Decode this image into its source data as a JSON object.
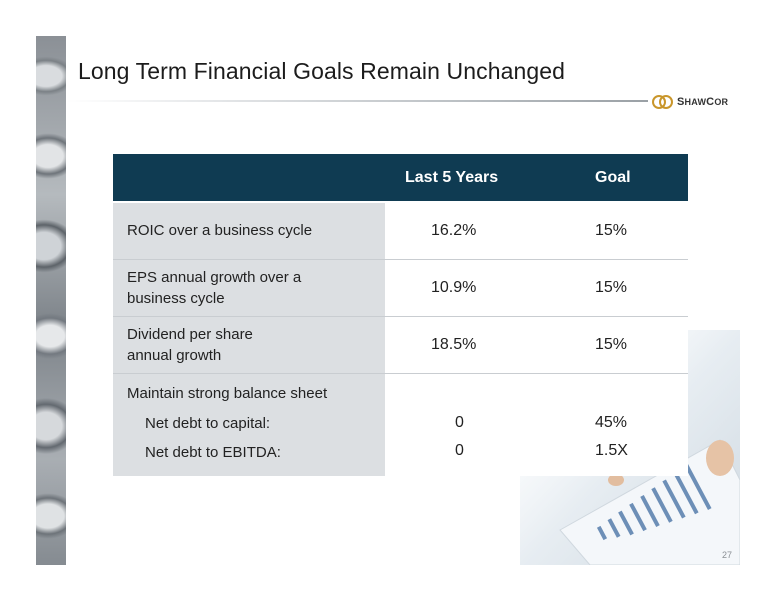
{
  "slide": {
    "title": "Long Term Financial Goals Remain Unchanged",
    "page_number": "27"
  },
  "logo": {
    "text_big_s": "S",
    "text_mid": "HAW",
    "text_big_c": "C",
    "text_end": "OR",
    "icon": "shawcor-rings-icon"
  },
  "table": {
    "headers": [
      "",
      "Last 5 Years",
      "Goal"
    ],
    "rows": [
      {
        "label": [
          "ROIC over a business cycle"
        ],
        "last5": "16.2%",
        "goal": "15%"
      },
      {
        "label": [
          "EPS annual growth over a",
          "business cycle"
        ],
        "last5": "10.9%",
        "goal": "15%"
      },
      {
        "label": [
          "Dividend per share",
          "annual growth"
        ],
        "last5": "18.5%",
        "goal": "15%"
      },
      {
        "label": [
          "Maintain strong balance sheet"
        ],
        "subrows": [
          {
            "label": "Net debt to capital:",
            "last5": "0",
            "goal": "45%"
          },
          {
            "label": "Net debt to EBITDA:",
            "last5": "0",
            "goal": "1.5X"
          }
        ]
      }
    ]
  },
  "colors": {
    "header_bg": "#0f3b52",
    "label_bg": "#dcdfe2"
  }
}
